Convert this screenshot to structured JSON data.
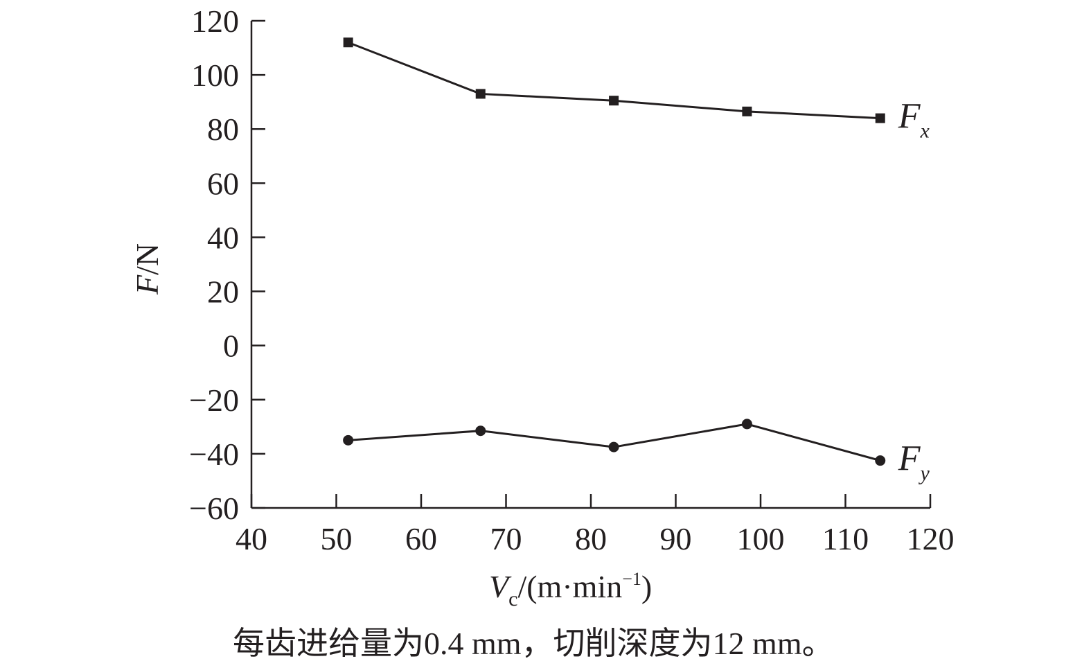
{
  "chart_data": {
    "type": "line",
    "x_axis": {
      "label_main": "V",
      "label_sub": "c",
      "label_unit": "/(m·min",
      "label_sup": "−1",
      "label_close": ")",
      "range": [
        40,
        120
      ],
      "ticks": [
        40,
        50,
        60,
        70,
        80,
        90,
        100,
        110,
        120
      ]
    },
    "y_axis": {
      "label_main": "F",
      "label_unit": "/N",
      "range": [
        -60,
        120
      ],
      "ticks": [
        {
          "value": -60,
          "label": "−60"
        },
        {
          "value": -40,
          "label": "−40"
        },
        {
          "value": -20,
          "label": "−20"
        },
        {
          "value": 0,
          "label": "0"
        },
        {
          "value": 20,
          "label": "20"
        },
        {
          "value": 40,
          "label": "40"
        },
        {
          "value": 60,
          "label": "60"
        },
        {
          "value": 80,
          "label": "80"
        },
        {
          "value": 100,
          "label": "100"
        },
        {
          "value": 120,
          "label": "120"
        }
      ]
    },
    "series": [
      {
        "name": "F",
        "name_sub": "x",
        "marker": "square",
        "points": [
          {
            "x": 51.4,
            "y": 112
          },
          {
            "x": 67.0,
            "y": 93
          },
          {
            "x": 82.7,
            "y": 90.5
          },
          {
            "x": 98.4,
            "y": 86.5
          },
          {
            "x": 114.1,
            "y": 84
          }
        ]
      },
      {
        "name": "F",
        "name_sub": "y",
        "marker": "circle",
        "points": [
          {
            "x": 51.4,
            "y": -35
          },
          {
            "x": 67.0,
            "y": -31.5
          },
          {
            "x": 82.7,
            "y": -37.5
          },
          {
            "x": 98.4,
            "y": -29
          },
          {
            "x": 114.1,
            "y": -42.5
          }
        ]
      }
    ],
    "caption": "每齿进给量为0.4 mm，切削深度为12 mm。",
    "grid": false,
    "colors": {
      "line": "#231f20",
      "background": "#ffffff"
    }
  }
}
